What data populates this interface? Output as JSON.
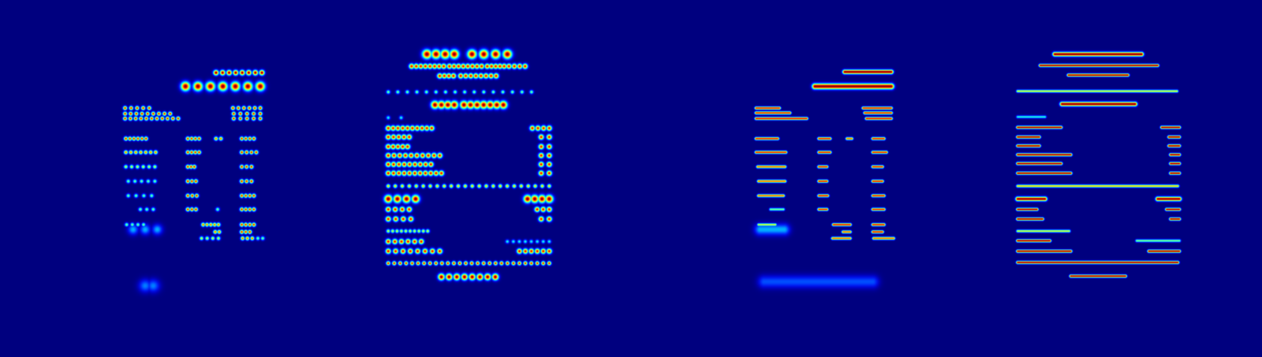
{
  "chart_data": [
    {
      "type": "heatmap",
      "marker": "blob",
      "tick_labels": false,
      "xlim": [
        0,
        392
      ],
      "ylim": [
        0,
        444
      ],
      "zlim": [
        0,
        1
      ],
      "regions": [
        {
          "y": 90,
          "x0": 268,
          "x1": 325,
          "n": 8,
          "r": 4,
          "v": 1
        },
        {
          "y": 107,
          "x0": 230,
          "x1": 323,
          "n": 7,
          "r": 7,
          "v": 1
        },
        {
          "y": 134,
          "x0": 155,
          "x1": 185,
          "n": 5,
          "r": 3,
          "v": 0.9
        },
        {
          "y": 134,
          "x0": 289,
          "x1": 323,
          "n": 6,
          "r": 3,
          "v": 0.9
        },
        {
          "y": 141,
          "x0": 155,
          "x1": 211,
          "n": 9,
          "r": 3,
          "v": 0.9
        },
        {
          "y": 141,
          "x0": 290,
          "x1": 323,
          "n": 5,
          "r": 3,
          "v": 0.9
        },
        {
          "y": 147,
          "x0": 155,
          "x1": 221,
          "n": 11,
          "r": 3,
          "v": 0.9
        },
        {
          "y": 147,
          "x0": 290,
          "x1": 323,
          "n": 5,
          "r": 3,
          "v": 0.9
        },
        {
          "y": 172,
          "x0": 156,
          "x1": 181,
          "n": 6,
          "r": 3,
          "v": 0.9
        },
        {
          "y": 172,
          "x0": 233,
          "x1": 247,
          "n": 4,
          "r": 3,
          "v": 0.9
        },
        {
          "y": 172,
          "x0": 268,
          "x1": 274,
          "n": 2,
          "r": 3,
          "v": 0.8
        },
        {
          "y": 172,
          "x0": 300,
          "x1": 315,
          "n": 4,
          "r": 3,
          "v": 0.9
        },
        {
          "y": 189,
          "x0": 156,
          "x1": 193,
          "n": 7,
          "r": 3,
          "v": 0.8
        },
        {
          "y": 189,
          "x0": 233,
          "x1": 247,
          "n": 4,
          "r": 3,
          "v": 0.9
        },
        {
          "y": 189,
          "x0": 300,
          "x1": 318,
          "n": 4,
          "r": 3,
          "v": 0.9
        },
        {
          "y": 207,
          "x0": 156,
          "x1": 192,
          "n": 6,
          "r": 3,
          "v": 0.6
        },
        {
          "y": 207,
          "x0": 233,
          "x1": 241,
          "n": 3,
          "r": 3,
          "v": 0.9
        },
        {
          "y": 207,
          "x0": 300,
          "x1": 312,
          "n": 3,
          "r": 3,
          "v": 0.9
        },
        {
          "y": 225,
          "x0": 159,
          "x1": 192,
          "n": 5,
          "r": 3,
          "v": 0.5
        },
        {
          "y": 225,
          "x0": 233,
          "x1": 243,
          "n": 3,
          "r": 3,
          "v": 0.9
        },
        {
          "y": 225,
          "x0": 300,
          "x1": 312,
          "n": 3,
          "r": 3,
          "v": 0.9
        },
        {
          "y": 243,
          "x0": 159,
          "x1": 188,
          "n": 4,
          "r": 3,
          "v": 0.5
        },
        {
          "y": 243,
          "x0": 233,
          "x1": 244,
          "n": 3,
          "r": 3,
          "v": 0.9
        },
        {
          "y": 243,
          "x0": 300,
          "x1": 315,
          "n": 4,
          "r": 3,
          "v": 0.9
        },
        {
          "y": 260,
          "x0": 174,
          "x1": 190,
          "n": 3,
          "r": 3,
          "v": 0.5
        },
        {
          "y": 260,
          "x0": 233,
          "x1": 243,
          "n": 3,
          "r": 3,
          "v": 0.9
        },
        {
          "y": 260,
          "x0": 270,
          "x1": 270,
          "n": 1,
          "r": 3,
          "v": 0.5
        },
        {
          "y": 260,
          "x0": 300,
          "x1": 315,
          "n": 4,
          "r": 3,
          "v": 0.9
        },
        {
          "y": 279,
          "x0": 157,
          "x1": 178,
          "n": 4,
          "r": 3,
          "v": 0.5
        },
        {
          "y": 279,
          "x0": 252,
          "x1": 271,
          "n": 5,
          "r": 3,
          "v": 0.8
        },
        {
          "y": 279,
          "x0": 300,
          "x1": 315,
          "n": 4,
          "r": 3,
          "v": 0.9
        },
        {
          "y": 288,
          "x0": 267,
          "x1": 272,
          "n": 2,
          "r": 3,
          "v": 0.8
        },
        {
          "y": 288,
          "x0": 300,
          "x1": 310,
          "n": 3,
          "r": 3,
          "v": 0.9
        },
        {
          "y": 296,
          "x0": 250,
          "x1": 271,
          "n": 4,
          "r": 3,
          "v": 0.6
        },
        {
          "y": 296,
          "x0": 301,
          "x1": 313,
          "n": 3,
          "r": 3,
          "v": 0.8
        },
        {
          "y": 296,
          "x0": 320,
          "x1": 326,
          "n": 2,
          "r": 3,
          "v": 0.5
        },
        {
          "y": 285,
          "x0": 165,
          "x1": 195,
          "n": 3,
          "r": 8,
          "v": 0.3
        },
        {
          "y": 355,
          "x0": 180,
          "x1": 190,
          "n": 2,
          "r": 10,
          "v": 0.25
        }
      ]
    },
    {
      "type": "heatmap",
      "marker": "blob",
      "tick_labels": false,
      "xlim": [
        0,
        392
      ],
      "ylim": [
        0,
        444
      ],
      "zlim": [
        0,
        1
      ],
      "regions": [
        {
          "y": 67,
          "x0": 138,
          "x1": 172,
          "n": 4,
          "r": 7,
          "v": 1
        },
        {
          "y": 67,
          "x0": 194,
          "x1": 238,
          "n": 4,
          "r": 7,
          "v": 1
        },
        {
          "y": 82,
          "x0": 119,
          "x1": 159,
          "n": 8,
          "r": 4,
          "v": 0.9
        },
        {
          "y": 82,
          "x0": 166,
          "x1": 206,
          "n": 8,
          "r": 4,
          "v": 0.9
        },
        {
          "y": 82,
          "x0": 213,
          "x1": 234,
          "n": 5,
          "r": 4,
          "v": 0.9
        },
        {
          "y": 82,
          "x0": 240,
          "x1": 260,
          "n": 4,
          "r": 4,
          "v": 0.9
        },
        {
          "y": 94,
          "x0": 154,
          "x1": 171,
          "n": 4,
          "r": 4,
          "v": 0.9
        },
        {
          "y": 94,
          "x0": 180,
          "x1": 224,
          "n": 8,
          "r": 4,
          "v": 0.9
        },
        {
          "y": 114,
          "x0": 90,
          "x1": 268,
          "n": 16,
          "r": 3,
          "v": 0.5
        },
        {
          "y": 130,
          "x0": 148,
          "x1": 172,
          "n": 4,
          "r": 6,
          "v": 1
        },
        {
          "y": 130,
          "x0": 184,
          "x1": 233,
          "n": 7,
          "r": 6,
          "v": 1
        },
        {
          "y": 146,
          "x0": 90,
          "x1": 106,
          "n": 2,
          "r": 3,
          "v": 0.4
        },
        {
          "y": 159,
          "x0": 90,
          "x1": 144,
          "n": 10,
          "r": 4,
          "v": 0.9
        },
        {
          "y": 159,
          "x0": 269,
          "x1": 290,
          "n": 4,
          "r": 4,
          "v": 0.9
        },
        {
          "y": 170,
          "x0": 90,
          "x1": 116,
          "n": 5,
          "r": 4,
          "v": 0.9
        },
        {
          "y": 170,
          "x0": 280,
          "x1": 290,
          "n": 2,
          "r": 4,
          "v": 0.9
        },
        {
          "y": 182,
          "x0": 90,
          "x1": 114,
          "n": 5,
          "r": 4,
          "v": 0.9
        },
        {
          "y": 182,
          "x0": 280,
          "x1": 290,
          "n": 2,
          "r": 4,
          "v": 0.9
        },
        {
          "y": 193,
          "x0": 90,
          "x1": 154,
          "n": 10,
          "r": 4,
          "v": 0.9
        },
        {
          "y": 193,
          "x0": 280,
          "x1": 290,
          "n": 2,
          "r": 4,
          "v": 0.9
        },
        {
          "y": 204,
          "x0": 90,
          "x1": 143,
          "n": 9,
          "r": 4,
          "v": 0.9
        },
        {
          "y": 204,
          "x0": 280,
          "x1": 290,
          "n": 2,
          "r": 4,
          "v": 0.9
        },
        {
          "y": 215,
          "x0": 90,
          "x1": 156,
          "n": 11,
          "r": 4,
          "v": 0.9
        },
        {
          "y": 215,
          "x0": 280,
          "x1": 290,
          "n": 2,
          "r": 4,
          "v": 0.9
        },
        {
          "y": 231,
          "x0": 90,
          "x1": 290,
          "n": 24,
          "r": 3,
          "v": 0.7
        },
        {
          "y": 247,
          "x0": 90,
          "x1": 124,
          "n": 4,
          "r": 6,
          "v": 1
        },
        {
          "y": 247,
          "x0": 263,
          "x1": 290,
          "n": 4,
          "r": 6,
          "v": 1
        },
        {
          "y": 260,
          "x0": 90,
          "x1": 116,
          "n": 4,
          "r": 4,
          "v": 0.9
        },
        {
          "y": 260,
          "x0": 275,
          "x1": 290,
          "n": 3,
          "r": 4,
          "v": 0.9
        },
        {
          "y": 272,
          "x0": 90,
          "x1": 118,
          "n": 4,
          "r": 4,
          "v": 0.9
        },
        {
          "y": 272,
          "x0": 280,
          "x1": 290,
          "n": 2,
          "r": 4,
          "v": 0.9
        },
        {
          "y": 287,
          "x0": 90,
          "x1": 139,
          "n": 10,
          "r": 3,
          "v": 0.6
        },
        {
          "y": 300,
          "x0": 90,
          "x1": 131,
          "n": 6,
          "r": 4,
          "v": 0.9
        },
        {
          "y": 300,
          "x0": 238,
          "x1": 290,
          "n": 8,
          "r": 3,
          "v": 0.4
        },
        {
          "y": 312,
          "x0": 90,
          "x1": 154,
          "n": 8,
          "r": 4,
          "v": 0.9
        },
        {
          "y": 312,
          "x0": 253,
          "x1": 290,
          "n": 6,
          "r": 4,
          "v": 0.9
        },
        {
          "y": 327,
          "x0": 90,
          "x1": 290,
          "n": 28,
          "r": 3,
          "v": 0.9
        },
        {
          "y": 344,
          "x0": 156,
          "x1": 223,
          "n": 8,
          "r": 5,
          "v": 1
        }
      ]
    },
    {
      "type": "heatmap",
      "marker": "streak",
      "tick_labels": false,
      "xlim": [
        0,
        392
      ],
      "ylim": [
        0,
        444
      ],
      "zlim": [
        0,
        1
      ],
      "regions": [
        {
          "y": 89,
          "x0": 265,
          "x1": 323,
          "r": 3,
          "v": 1
        },
        {
          "y": 107,
          "x0": 228,
          "x1": 323,
          "r": 4,
          "v": 1
        },
        {
          "y": 134,
          "x0": 155,
          "x1": 184,
          "r": 2,
          "v": 0.9
        },
        {
          "y": 134,
          "x0": 288,
          "x1": 323,
          "r": 2,
          "v": 0.9
        },
        {
          "y": 140,
          "x0": 155,
          "x1": 197,
          "r": 2,
          "v": 0.9
        },
        {
          "y": 140,
          "x0": 290,
          "x1": 323,
          "r": 2,
          "v": 0.9
        },
        {
          "y": 147,
          "x0": 155,
          "x1": 218,
          "r": 2,
          "v": 0.9
        },
        {
          "y": 147,
          "x0": 292,
          "x1": 323,
          "r": 2,
          "v": 0.9
        },
        {
          "y": 172,
          "x0": 155,
          "x1": 182,
          "r": 2,
          "v": 0.9
        },
        {
          "y": 172,
          "x0": 233,
          "x1": 247,
          "r": 2,
          "v": 0.9
        },
        {
          "y": 172,
          "x0": 268,
          "x1": 274,
          "r": 2,
          "v": 0.8
        },
        {
          "y": 172,
          "x0": 300,
          "x1": 314,
          "r": 2,
          "v": 0.9
        },
        {
          "y": 189,
          "x0": 155,
          "x1": 192,
          "r": 2,
          "v": 0.9
        },
        {
          "y": 189,
          "x0": 233,
          "x1": 247,
          "r": 2,
          "v": 0.9
        },
        {
          "y": 189,
          "x0": 300,
          "x1": 317,
          "r": 2,
          "v": 0.9
        },
        {
          "y": 207,
          "x0": 157,
          "x1": 191,
          "r": 2,
          "v": 0.8
        },
        {
          "y": 207,
          "x0": 233,
          "x1": 243,
          "r": 2,
          "v": 0.9
        },
        {
          "y": 207,
          "x0": 300,
          "x1": 312,
          "r": 2,
          "v": 0.9
        },
        {
          "y": 225,
          "x0": 158,
          "x1": 191,
          "r": 2,
          "v": 0.8
        },
        {
          "y": 225,
          "x0": 233,
          "x1": 243,
          "r": 2,
          "v": 0.9
        },
        {
          "y": 225,
          "x0": 300,
          "x1": 312,
          "r": 2,
          "v": 0.9
        },
        {
          "y": 243,
          "x0": 158,
          "x1": 189,
          "r": 2,
          "v": 0.8
        },
        {
          "y": 243,
          "x0": 233,
          "x1": 244,
          "r": 2,
          "v": 0.9
        },
        {
          "y": 243,
          "x0": 300,
          "x1": 314,
          "r": 2,
          "v": 0.9
        },
        {
          "y": 260,
          "x0": 173,
          "x1": 189,
          "r": 2,
          "v": 0.5
        },
        {
          "y": 260,
          "x0": 233,
          "x1": 243,
          "r": 2,
          "v": 0.9
        },
        {
          "y": 260,
          "x0": 300,
          "x1": 314,
          "r": 2,
          "v": 0.9
        },
        {
          "y": 279,
          "x0": 158,
          "x1": 179,
          "r": 2,
          "v": 0.6
        },
        {
          "y": 279,
          "x0": 251,
          "x1": 272,
          "r": 2,
          "v": 0.9
        },
        {
          "y": 279,
          "x0": 300,
          "x1": 314,
          "r": 2,
          "v": 0.9
        },
        {
          "y": 288,
          "x0": 263,
          "x1": 272,
          "r": 2,
          "v": 0.8
        },
        {
          "y": 288,
          "x0": 300,
          "x1": 312,
          "r": 2,
          "v": 0.9
        },
        {
          "y": 296,
          "x0": 250,
          "x1": 272,
          "r": 2,
          "v": 0.8
        },
        {
          "y": 296,
          "x0": 301,
          "x1": 326,
          "r": 2,
          "v": 0.8
        },
        {
          "y": 285,
          "x0": 160,
          "x1": 190,
          "r": 8,
          "v": 0.3
        },
        {
          "y": 350,
          "x0": 165,
          "x1": 300,
          "r": 9,
          "v": 0.2
        }
      ]
    },
    {
      "type": "heatmap",
      "marker": "streak",
      "tick_labels": false,
      "xlim": [
        0,
        392
      ],
      "ylim": [
        0,
        444
      ],
      "zlim": [
        0,
        1
      ],
      "regions": [
        {
          "y": 67,
          "x0": 134,
          "x1": 242,
          "r": 3,
          "v": 1
        },
        {
          "y": 81,
          "x0": 116,
          "x1": 262,
          "r": 2,
          "v": 1
        },
        {
          "y": 93,
          "x0": 151,
          "x1": 225,
          "r": 2,
          "v": 1
        },
        {
          "y": 113,
          "x0": 88,
          "x1": 286,
          "r": 2,
          "v": 0.6
        },
        {
          "y": 129,
          "x0": 143,
          "x1": 234,
          "r": 3,
          "v": 1
        },
        {
          "y": 145,
          "x0": 88,
          "x1": 122,
          "r": 2,
          "v": 0.4
        },
        {
          "y": 158,
          "x0": 88,
          "x1": 142,
          "r": 2,
          "v": 1
        },
        {
          "y": 158,
          "x0": 267,
          "x1": 289,
          "r": 2,
          "v": 1
        },
        {
          "y": 170,
          "x0": 88,
          "x1": 115,
          "r": 2,
          "v": 1
        },
        {
          "y": 170,
          "x0": 276,
          "x1": 289,
          "r": 2,
          "v": 1
        },
        {
          "y": 181,
          "x0": 88,
          "x1": 115,
          "r": 2,
          "v": 1
        },
        {
          "y": 181,
          "x0": 276,
          "x1": 289,
          "r": 2,
          "v": 1
        },
        {
          "y": 192,
          "x0": 88,
          "x1": 154,
          "r": 2,
          "v": 1
        },
        {
          "y": 192,
          "x0": 278,
          "x1": 289,
          "r": 2,
          "v": 1
        },
        {
          "y": 203,
          "x0": 88,
          "x1": 142,
          "r": 2,
          "v": 1
        },
        {
          "y": 203,
          "x0": 278,
          "x1": 289,
          "r": 2,
          "v": 1
        },
        {
          "y": 215,
          "x0": 88,
          "x1": 154,
          "r": 2,
          "v": 1
        },
        {
          "y": 215,
          "x0": 278,
          "x1": 289,
          "r": 2,
          "v": 1
        },
        {
          "y": 231,
          "x0": 88,
          "x1": 287,
          "r": 2,
          "v": 0.7
        },
        {
          "y": 247,
          "x0": 88,
          "x1": 122,
          "r": 3,
          "v": 1
        },
        {
          "y": 247,
          "x0": 262,
          "x1": 289,
          "r": 3,
          "v": 1
        },
        {
          "y": 260,
          "x0": 88,
          "x1": 112,
          "r": 2,
          "v": 1
        },
        {
          "y": 260,
          "x0": 273,
          "x1": 289,
          "r": 2,
          "v": 1
        },
        {
          "y": 272,
          "x0": 88,
          "x1": 119,
          "r": 2,
          "v": 1
        },
        {
          "y": 272,
          "x0": 278,
          "x1": 289,
          "r": 2,
          "v": 1
        },
        {
          "y": 287,
          "x0": 88,
          "x1": 152,
          "r": 2,
          "v": 0.6
        },
        {
          "y": 299,
          "x0": 88,
          "x1": 128,
          "r": 2,
          "v": 1
        },
        {
          "y": 299,
          "x0": 236,
          "x1": 289,
          "r": 2,
          "v": 0.5
        },
        {
          "y": 312,
          "x0": 88,
          "x1": 154,
          "r": 2,
          "v": 1
        },
        {
          "y": 312,
          "x0": 251,
          "x1": 289,
          "r": 2,
          "v": 1
        },
        {
          "y": 326,
          "x0": 88,
          "x1": 287,
          "r": 2,
          "v": 1
        },
        {
          "y": 343,
          "x0": 154,
          "x1": 222,
          "r": 2,
          "v": 1
        }
      ]
    }
  ]
}
